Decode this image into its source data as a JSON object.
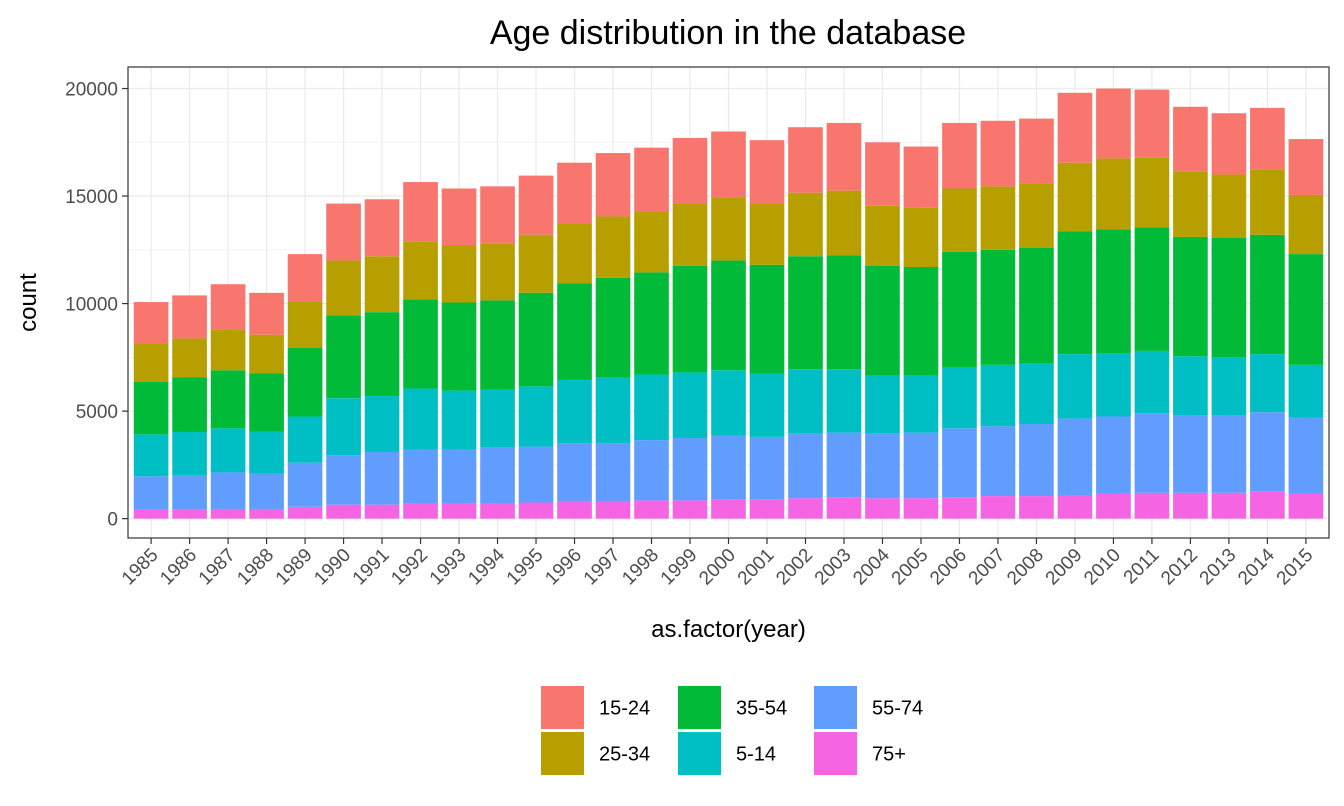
{
  "chart_data": {
    "type": "bar",
    "stacked": true,
    "title": "Age distribution in the database",
    "xlabel": "as.factor(year)",
    "ylabel": "count",
    "ylim": [
      -900,
      21000
    ],
    "yticks": [
      0,
      5000,
      10000,
      15000,
      20000
    ],
    "grid": true,
    "legend_position": "bottom",
    "categories": [
      "1985",
      "1986",
      "1987",
      "1988",
      "1989",
      "1990",
      "1991",
      "1992",
      "1993",
      "1994",
      "1995",
      "1996",
      "1997",
      "1998",
      "1999",
      "2000",
      "2001",
      "2002",
      "2003",
      "2004",
      "2005",
      "2006",
      "2007",
      "2008",
      "2009",
      "2010",
      "2011",
      "2012",
      "2013",
      "2014",
      "2015"
    ],
    "stack_order": [
      "75+",
      "55-74",
      "5-14",
      "35-54",
      "25-34",
      "15-24"
    ],
    "series": [
      {
        "name": "15-24",
        "color": "#F8766D",
        "values": [
          1950,
          2000,
          2100,
          1950,
          2200,
          2650,
          2650,
          2750,
          2650,
          2650,
          2750,
          2850,
          2950,
          2950,
          3050,
          3050,
          2950,
          3050,
          3150,
          2950,
          2850,
          3050,
          3050,
          3000,
          3250,
          3250,
          3150,
          3000,
          2850,
          2850,
          2600
        ]
      },
      {
        "name": "25-34",
        "color": "#B79F00",
        "values": [
          1750,
          1800,
          1900,
          1800,
          2150,
          2550,
          2600,
          2700,
          2650,
          2650,
          2700,
          2750,
          2850,
          2850,
          2900,
          2950,
          2850,
          2950,
          3000,
          2800,
          2750,
          2950,
          2950,
          3000,
          3200,
          3300,
          3250,
          3050,
          2950,
          3050,
          2750
        ]
      },
      {
        "name": "35-54",
        "color": "#00BA38",
        "values": [
          2450,
          2550,
          2700,
          2700,
          3200,
          3850,
          3900,
          4150,
          4100,
          4150,
          4350,
          4500,
          4650,
          4750,
          4950,
          5100,
          5050,
          5250,
          5300,
          5100,
          5050,
          5350,
          5350,
          5400,
          5700,
          5750,
          5750,
          5550,
          5550,
          5550,
          5150
        ]
      },
      {
        "name": "5-14",
        "color": "#00BFC4",
        "values": [
          1950,
          2000,
          2050,
          1950,
          2150,
          2650,
          2600,
          2850,
          2750,
          2700,
          2800,
          2950,
          3050,
          3050,
          3050,
          3050,
          2950,
          3000,
          2950,
          2700,
          2650,
          2850,
          2850,
          2800,
          3000,
          2950,
          2900,
          2750,
          2700,
          2700,
          2450
        ]
      },
      {
        "name": "55-74",
        "color": "#619CFF",
        "values": [
          1550,
          1600,
          1700,
          1650,
          2050,
          2300,
          2450,
          2500,
          2500,
          2600,
          2600,
          2700,
          2700,
          2800,
          2900,
          2950,
          2900,
          3000,
          3000,
          3000,
          3050,
          3200,
          3250,
          3350,
          3550,
          3600,
          3700,
          3600,
          3600,
          3700,
          3550
        ]
      },
      {
        "name": "75+",
        "color": "#F564E3",
        "values": [
          420,
          430,
          450,
          450,
          550,
          650,
          650,
          700,
          700,
          700,
          750,
          800,
          800,
          850,
          850,
          900,
          900,
          950,
          1000,
          950,
          950,
          1000,
          1050,
          1050,
          1100,
          1150,
          1200,
          1200,
          1200,
          1250,
          1150
        ]
      }
    ],
    "legend": [
      [
        "15-24",
        "25-34"
      ],
      [
        "35-54",
        "5-14"
      ],
      [
        "55-74",
        "75+"
      ]
    ]
  }
}
